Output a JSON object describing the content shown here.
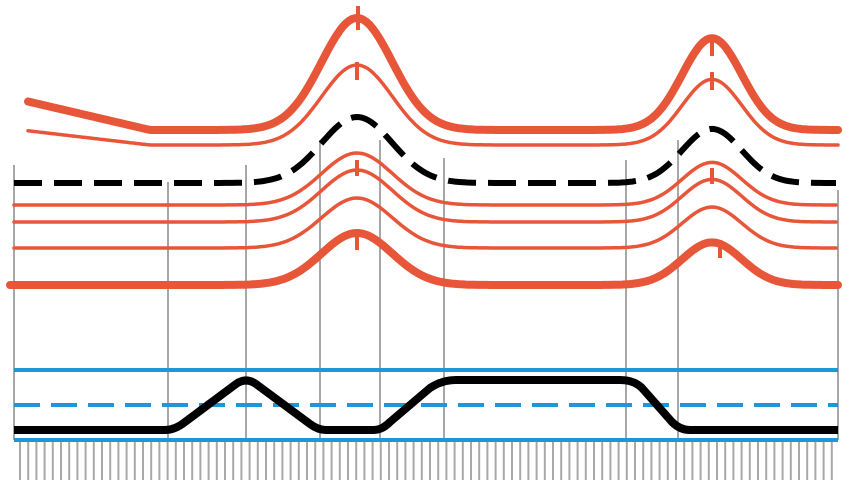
{
  "diagram": {
    "colors": {
      "background": "#ffffff",
      "contour": "#e8563a",
      "reference_dashed": "#000000",
      "profile": "#000000",
      "blue_line": "#1f97d6",
      "grid_line": "#8a8a8a",
      "tick": "#a8a8a8"
    }
  }
}
